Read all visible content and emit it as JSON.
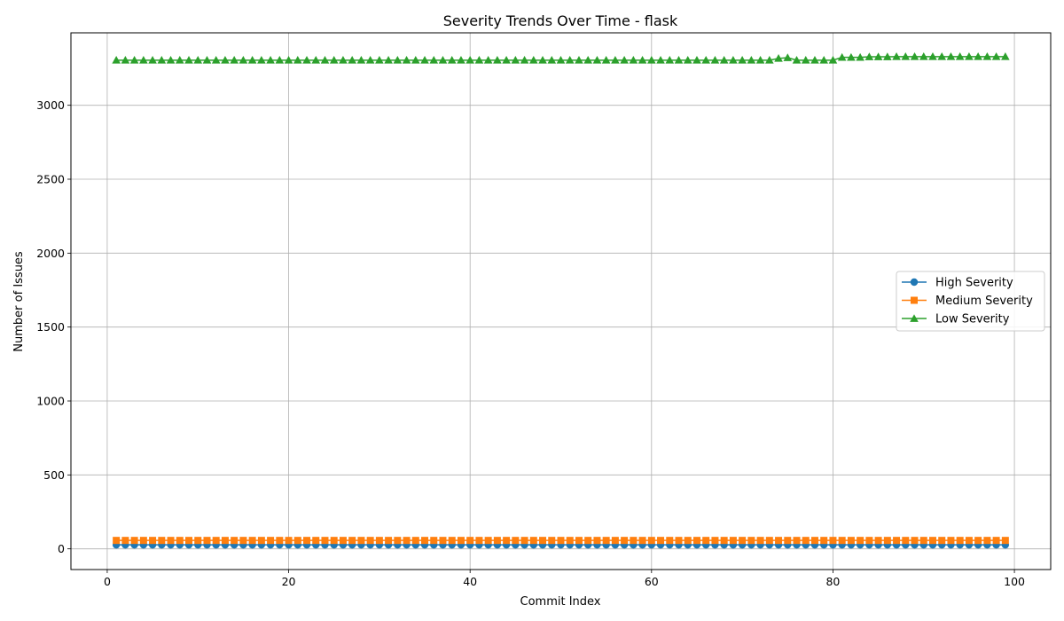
{
  "chart_data": {
    "type": "line",
    "title": "Severity Trends Over Time - flask",
    "xlabel": "Commit Index",
    "ylabel": "Number of Issues",
    "xlim": [
      -4,
      104
    ],
    "ylim": [
      -140,
      3490
    ],
    "xticks": [
      0,
      20,
      40,
      60,
      80,
      100
    ],
    "yticks": [
      0,
      500,
      1000,
      1500,
      2000,
      2500,
      3000
    ],
    "grid": true,
    "legend_position": "center-right",
    "x": [
      1,
      2,
      3,
      4,
      5,
      6,
      7,
      8,
      9,
      10,
      11,
      12,
      13,
      14,
      15,
      16,
      17,
      18,
      19,
      20,
      21,
      22,
      23,
      24,
      25,
      26,
      27,
      28,
      29,
      30,
      31,
      32,
      33,
      34,
      35,
      36,
      37,
      38,
      39,
      40,
      41,
      42,
      43,
      44,
      45,
      46,
      47,
      48,
      49,
      50,
      51,
      52,
      53,
      54,
      55,
      56,
      57,
      58,
      59,
      60,
      61,
      62,
      63,
      64,
      65,
      66,
      67,
      68,
      69,
      70,
      71,
      72,
      73,
      74,
      75,
      76,
      77,
      78,
      79,
      80,
      81,
      82,
      83,
      84,
      85,
      86,
      87,
      88,
      89,
      90,
      91,
      92,
      93,
      94,
      95,
      96,
      97,
      98,
      99
    ],
    "series": [
      {
        "name": "High Severity",
        "color": "#1f77b4",
        "marker": "circle",
        "values": [
          27,
          27,
          27,
          27,
          27,
          27,
          27,
          27,
          27,
          27,
          27,
          27,
          27,
          27,
          27,
          27,
          27,
          27,
          27,
          27,
          27,
          27,
          27,
          27,
          27,
          27,
          27,
          27,
          27,
          27,
          27,
          27,
          27,
          27,
          27,
          27,
          27,
          27,
          27,
          27,
          27,
          27,
          27,
          27,
          27,
          27,
          27,
          27,
          27,
          27,
          27,
          27,
          27,
          27,
          27,
          27,
          27,
          27,
          27,
          27,
          27,
          27,
          27,
          27,
          27,
          27,
          27,
          27,
          27,
          27,
          27,
          27,
          27,
          27,
          27,
          27,
          27,
          27,
          27,
          27,
          27,
          27,
          27,
          27,
          27,
          27,
          27,
          27,
          27,
          27,
          27,
          27,
          27,
          27,
          27,
          27,
          27,
          27,
          27
        ]
      },
      {
        "name": "Medium Severity",
        "color": "#ff7f0e",
        "marker": "square",
        "values": [
          57,
          57,
          57,
          57,
          57,
          57,
          57,
          57,
          57,
          57,
          57,
          57,
          57,
          57,
          57,
          57,
          57,
          57,
          57,
          57,
          57,
          57,
          57,
          57,
          57,
          57,
          57,
          57,
          57,
          57,
          57,
          57,
          57,
          57,
          57,
          57,
          57,
          57,
          57,
          57,
          57,
          57,
          57,
          57,
          57,
          57,
          57,
          57,
          57,
          57,
          57,
          57,
          57,
          57,
          57,
          57,
          57,
          57,
          57,
          57,
          57,
          57,
          57,
          57,
          57,
          57,
          57,
          57,
          57,
          57,
          57,
          57,
          57,
          57,
          57,
          57,
          57,
          57,
          57,
          57,
          57,
          57,
          57,
          57,
          57,
          57,
          57,
          57,
          57,
          57,
          57,
          57,
          57,
          57,
          57,
          57,
          57,
          57,
          57
        ]
      },
      {
        "name": "Low Severity",
        "color": "#2ca02c",
        "marker": "triangle",
        "values": [
          3305,
          3305,
          3305,
          3305,
          3305,
          3305,
          3305,
          3305,
          3305,
          3305,
          3305,
          3305,
          3305,
          3305,
          3305,
          3305,
          3305,
          3305,
          3305,
          3305,
          3305,
          3305,
          3305,
          3305,
          3305,
          3305,
          3305,
          3305,
          3305,
          3305,
          3305,
          3305,
          3305,
          3305,
          3305,
          3305,
          3305,
          3305,
          3305,
          3305,
          3305,
          3305,
          3305,
          3305,
          3305,
          3305,
          3305,
          3305,
          3305,
          3305,
          3305,
          3305,
          3305,
          3305,
          3305,
          3305,
          3305,
          3305,
          3305,
          3305,
          3305,
          3305,
          3305,
          3305,
          3305,
          3305,
          3305,
          3305,
          3305,
          3305,
          3305,
          3305,
          3305,
          3317,
          3322,
          3305,
          3305,
          3305,
          3305,
          3305,
          3324,
          3324,
          3324,
          3328,
          3328,
          3328,
          3329,
          3329,
          3329,
          3329,
          3329,
          3329,
          3329,
          3329,
          3329,
          3329,
          3329,
          3329,
          3329
        ]
      }
    ]
  }
}
